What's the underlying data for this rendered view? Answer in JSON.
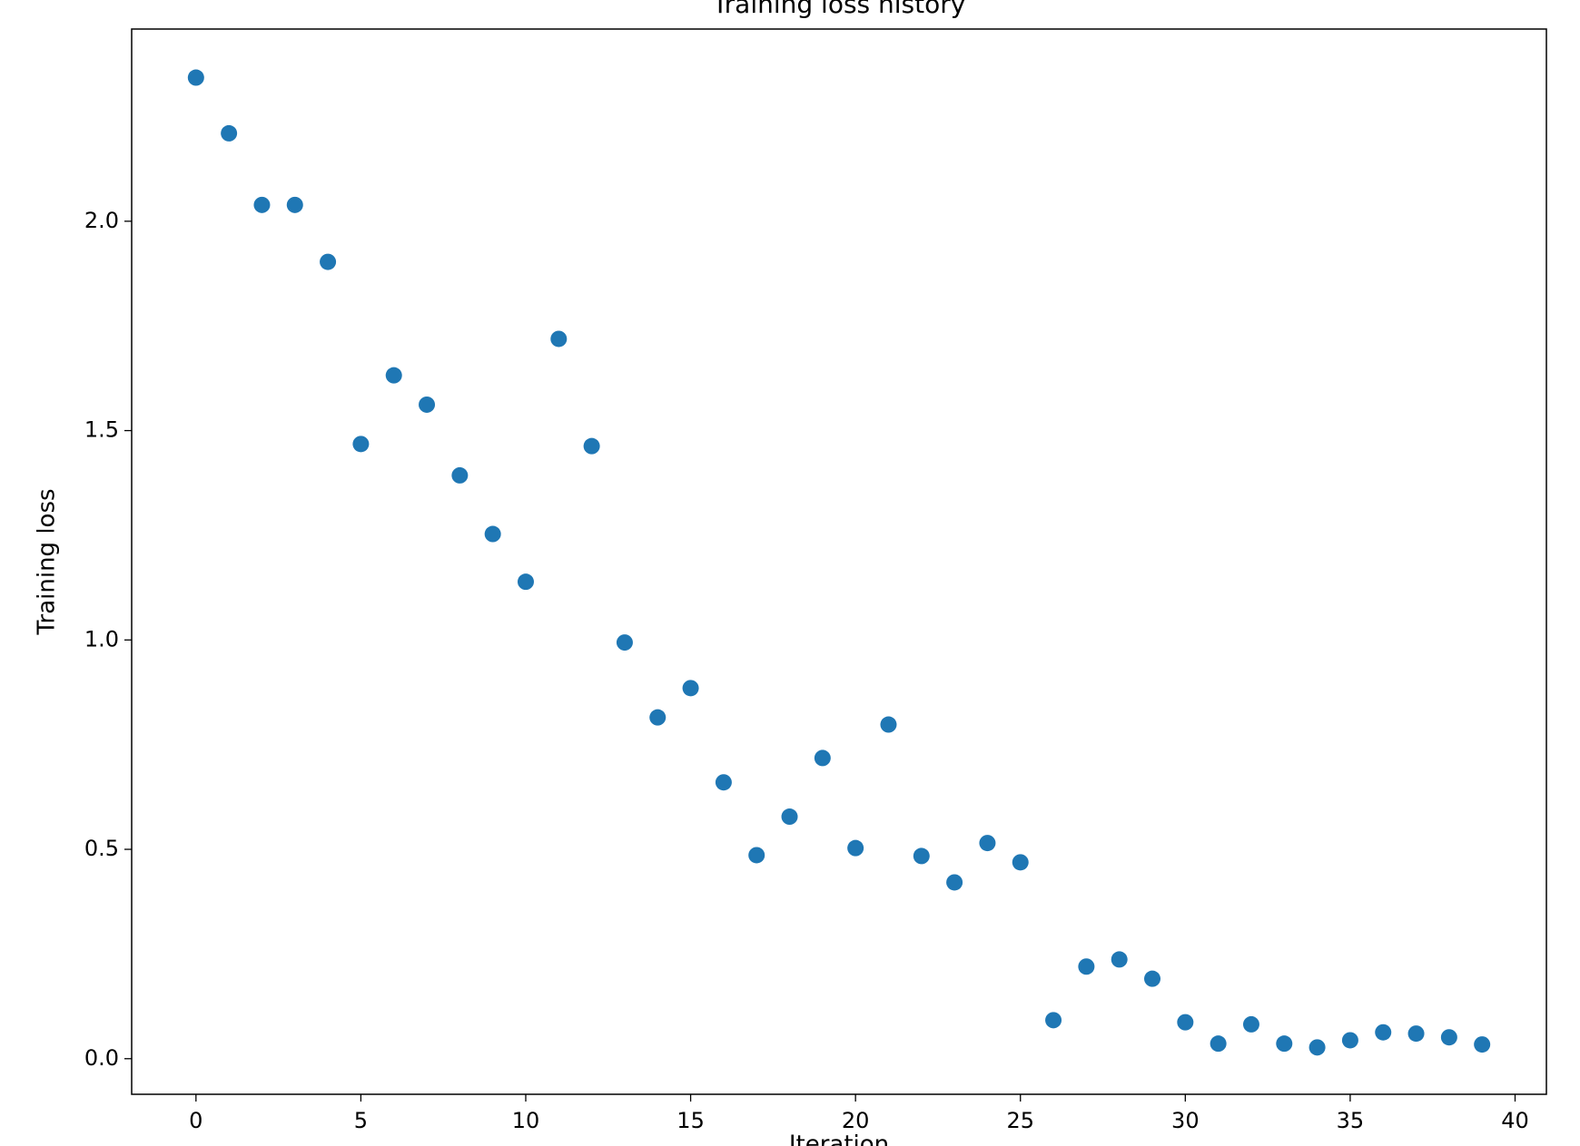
{
  "chart_data": {
    "type": "scatter",
    "title": "Training loss history",
    "xlabel": "Iteration",
    "ylabel": "Training loss",
    "x": [
      0,
      1,
      2,
      3,
      4,
      5,
      6,
      7,
      8,
      9,
      10,
      11,
      12,
      13,
      14,
      15,
      16,
      17,
      18,
      19,
      20,
      21,
      22,
      23,
      24,
      25,
      26,
      27,
      28,
      29,
      30,
      31,
      32,
      33,
      34,
      35,
      36,
      37,
      38,
      39
    ],
    "values": [
      2.343,
      2.21,
      2.039,
      2.039,
      1.903,
      1.468,
      1.632,
      1.562,
      1.393,
      1.253,
      1.139,
      1.719,
      1.463,
      0.994,
      0.815,
      0.885,
      0.66,
      0.486,
      0.578,
      0.718,
      0.503,
      0.798,
      0.484,
      0.421,
      0.515,
      0.469,
      0.092,
      0.22,
      0.237,
      0.191,
      0.087,
      0.036,
      0.082,
      0.036,
      0.027,
      0.044,
      0.063,
      0.06,
      0.051,
      0.034
    ],
    "color": "#1f77b4",
    "xlim": [
      -1.95,
      40.95
    ],
    "xticks": [
      0,
      5,
      10,
      15,
      20,
      25,
      30,
      35,
      40
    ],
    "ylim": [
      -0.085,
      2.459
    ],
    "yticks": [
      {
        "value": 0,
        "label": "0.0"
      },
      0.5,
      {
        "value": 1,
        "label": "1.0"
      },
      1.5,
      {
        "value": 2,
        "label": "2.0"
      }
    ],
    "grid": false
  }
}
